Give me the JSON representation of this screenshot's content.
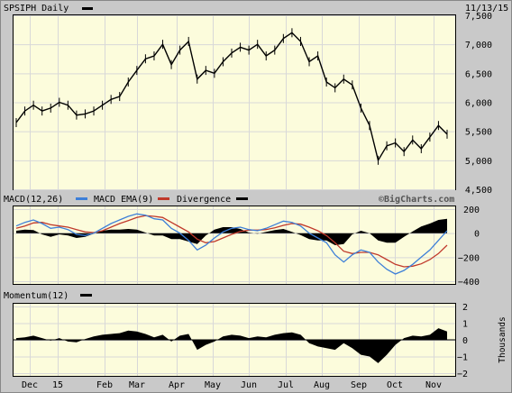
{
  "header": {
    "symbol_label": "SPSIPH Daily",
    "date": "11/13/15"
  },
  "macd_header": {
    "macd_label": "MACD(12,26)",
    "ema_label": "MACD EMA(9)",
    "div_label": "Divergence",
    "credit": "©BigCharts.com"
  },
  "momentum_header": {
    "label": "Momentum(12)"
  },
  "momentum_unit_label": "Thousands",
  "x_axis_labels": [
    "Dec",
    "15",
    "Feb",
    "Mar",
    "Apr",
    "May",
    "Jun",
    "Jul",
    "Aug",
    "Sep",
    "Oct",
    "Nov"
  ],
  "colors": {
    "price": "#000000",
    "macd": "#3d7fd8",
    "ema": "#c0392b",
    "divergence": "#000000",
    "panel_bg": "#fcfcdc"
  },
  "chart_data": [
    {
      "type": "ohlc",
      "name": "price",
      "ylim": [
        4500,
        7500
      ],
      "y_ticks": [
        4500,
        5000,
        5500,
        6000,
        6500,
        7000,
        7500
      ],
      "y_tick_labels": [
        "4,500",
        "5,000",
        "5,500",
        "6,000",
        "6,500",
        "7,000",
        "7,500"
      ],
      "x": [
        0,
        7,
        14,
        21,
        28,
        35,
        42,
        49,
        56,
        63,
        70,
        77,
        84,
        91,
        98,
        105,
        112,
        119,
        126,
        133,
        140,
        147,
        154,
        161,
        168,
        175,
        182,
        189,
        196,
        203,
        210,
        217,
        224,
        231,
        238,
        245,
        252,
        259,
        266,
        273,
        280,
        287,
        294,
        301,
        308,
        315,
        322,
        329,
        336,
        343,
        350
      ],
      "y": [
        5650,
        5850,
        5950,
        5850,
        5900,
        6000,
        5950,
        5780,
        5800,
        5850,
        5950,
        6050,
        6100,
        6350,
        6550,
        6750,
        6800,
        7000,
        6650,
        6900,
        7050,
        6400,
        6550,
        6500,
        6700,
        6850,
        6950,
        6900,
        7000,
        6800,
        6900,
        7100,
        7200,
        7050,
        6700,
        6800,
        6350,
        6250,
        6400,
        6300,
        5900,
        5600,
        5000,
        5250,
        5300,
        5150,
        5350,
        5200,
        5400,
        5600,
        5450
      ]
    },
    {
      "type": "line",
      "name": "MACD",
      "ylim": [
        -400,
        200
      ],
      "y_ticks": [
        200,
        0,
        -200,
        -400
      ],
      "x": [
        0,
        7,
        14,
        21,
        28,
        35,
        42,
        49,
        56,
        63,
        70,
        77,
        84,
        91,
        98,
        105,
        112,
        119,
        126,
        133,
        140,
        147,
        154,
        161,
        168,
        175,
        182,
        189,
        196,
        203,
        210,
        217,
        224,
        231,
        238,
        245,
        252,
        259,
        266,
        273,
        280,
        287,
        294,
        301,
        308,
        315,
        322,
        329,
        336,
        343,
        350
      ],
      "macd": [
        60,
        90,
        110,
        80,
        40,
        50,
        30,
        -10,
        -20,
        0,
        40,
        80,
        110,
        140,
        160,
        150,
        120,
        110,
        40,
        0,
        -60,
        -140,
        -100,
        -40,
        10,
        40,
        50,
        30,
        20,
        40,
        70,
        100,
        90,
        60,
        0,
        -40,
        -80,
        -180,
        -240,
        -180,
        -140,
        -160,
        -240,
        -300,
        -340,
        -310,
        -260,
        -200,
        -140,
        -60,
        20
      ],
      "ema": [
        40,
        60,
        85,
        90,
        70,
        60,
        50,
        30,
        10,
        5,
        20,
        50,
        80,
        105,
        130,
        145,
        140,
        130,
        90,
        50,
        10,
        -50,
        -80,
        -70,
        -40,
        -10,
        15,
        25,
        25,
        30,
        45,
        65,
        80,
        75,
        50,
        20,
        -20,
        -80,
        -150,
        -170,
        -160,
        -160,
        -180,
        -220,
        -260,
        -280,
        -275,
        -255,
        -220,
        -170,
        -100
      ],
      "divergence": [
        20,
        30,
        25,
        -10,
        -30,
        -10,
        -20,
        -40,
        -30,
        -5,
        20,
        30,
        30,
        35,
        30,
        5,
        -20,
        -20,
        -50,
        -50,
        -70,
        -90,
        -20,
        30,
        50,
        50,
        35,
        5,
        -5,
        10,
        25,
        35,
        10,
        -15,
        -50,
        -60,
        -60,
        -100,
        -90,
        -10,
        20,
        0,
        -60,
        -80,
        -80,
        -30,
        15,
        55,
        80,
        110,
        120
      ]
    },
    {
      "type": "area",
      "name": "Momentum(12)",
      "ylim": [
        -2,
        2
      ],
      "y_ticks": [
        2,
        1,
        0,
        -1,
        -2
      ],
      "x": [
        0,
        7,
        14,
        21,
        28,
        35,
        42,
        49,
        56,
        63,
        70,
        77,
        84,
        91,
        98,
        105,
        112,
        119,
        126,
        133,
        140,
        147,
        154,
        161,
        168,
        175,
        182,
        189,
        196,
        203,
        210,
        217,
        224,
        231,
        238,
        245,
        252,
        259,
        266,
        273,
        280,
        287,
        294,
        301,
        308,
        315,
        322,
        329,
        336,
        343,
        350
      ],
      "values": [
        0.1,
        0.15,
        0.25,
        0.1,
        -0.05,
        0.1,
        -0.1,
        -0.15,
        0.05,
        0.2,
        0.3,
        0.35,
        0.4,
        0.55,
        0.5,
        0.35,
        0.15,
        0.3,
        -0.1,
        0.25,
        0.35,
        -0.6,
        -0.3,
        -0.1,
        0.2,
        0.3,
        0.25,
        0.1,
        0.2,
        0.15,
        0.3,
        0.4,
        0.45,
        0.3,
        -0.2,
        -0.4,
        -0.5,
        -0.6,
        -0.2,
        -0.5,
        -0.9,
        -1.0,
        -1.4,
        -0.9,
        -0.3,
        0.1,
        0.25,
        0.2,
        0.3,
        0.7,
        0.5
      ]
    }
  ]
}
